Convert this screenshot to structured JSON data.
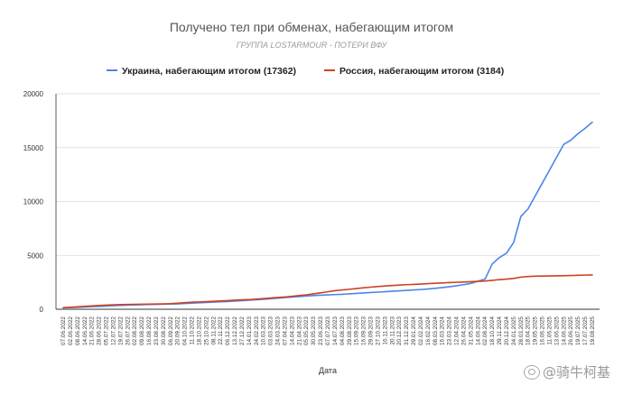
{
  "chart_data": {
    "type": "line",
    "title": "Получено тел при обменах, набегающим итогом",
    "subtitle": "ГРУППА LOSTARMOUR - ПОТЕРИ ВФУ",
    "xlabel": "Дата",
    "ylabel": "",
    "ylim": [
      0,
      20000
    ],
    "yticks": [
      0,
      5000,
      10000,
      15000,
      20000
    ],
    "grid": "horizontal",
    "legend_position": "top",
    "categories": [
      "07.06.2022",
      "02.06.2022",
      "08.06.2022",
      "14.06.2022",
      "21.06.2022",
      "28.06.2022",
      "05.07.2022",
      "12.07.2022",
      "19.07.2022",
      "26.07.2022",
      "02.08.2022",
      "09.08.2022",
      "16.08.2022",
      "23.08.2022",
      "30.08.2022",
      "06.09.2022",
      "20.09.2022",
      "04.10.2022",
      "11.10.2022",
      "18.10.2022",
      "25.10.2022",
      "08.11.2022",
      "22.11.2022",
      "06.12.2022",
      "13.12.2022",
      "27.12.2022",
      "14.01.2023",
      "24.02.2023",
      "10.03.2023",
      "03.03.2023",
      "24.03.2023",
      "07.04.2023",
      "14.04.2023",
      "21.04.2023",
      "05.05.2023",
      "30.05.2023",
      "23.06.2023",
      "07.07.2023",
      "14.07.2023",
      "04.08.2023",
      "29.08.2023",
      "15.09.2023",
      "16.09.2023",
      "29.09.2023",
      "27.10.2023",
      "16.11.2023",
      "20.11.2023",
      "20.12.2023",
      "31.12.2023",
      "29.01.2024",
      "02.02.2024",
      "16.02.2024",
      "08.03.2024",
      "16.03.2024",
      "23.03.2024",
      "12.04.2024",
      "26.04.2024",
      "31.05.2024",
      "14.06.2024",
      "02.08.2024",
      "18.10.2024",
      "29.11.2024",
      "20.12.2024",
      "24.01.2025",
      "28.03.2025",
      "18.04.2025",
      "19.05.2025",
      "16.06.2025",
      "11.06.2025",
      "13.06.2025",
      "14.06.2025",
      "26.06.2025",
      "19.07.2025",
      "17.07.2025",
      "19.08.2025"
    ],
    "series": [
      {
        "name": "Украина, набегающим итогом (17362)",
        "color": "#4a86e8",
        "values": [
          144,
          160,
          185,
          210,
          240,
          270,
          300,
          330,
          355,
          380,
          400,
          420,
          440,
          455,
          470,
          485,
          500,
          540,
          570,
          600,
          630,
          660,
          690,
          720,
          760,
          800,
          840,
          880,
          930,
          980,
          1030,
          1080,
          1130,
          1180,
          1230,
          1270,
          1300,
          1330,
          1360,
          1390,
          1430,
          1470,
          1510,
          1550,
          1590,
          1630,
          1670,
          1710,
          1750,
          1790,
          1830,
          1880,
          1940,
          2010,
          2090,
          2180,
          2280,
          2400,
          2600,
          2800,
          4200,
          4800,
          5200,
          6200,
          8600,
          9300,
          10500,
          11700,
          12900,
          14100,
          15300,
          15700,
          16300,
          16800,
          17362
        ]
      },
      {
        "name": "Россия, набегающим итогом (3184)",
        "color": "#cc4125",
        "values": [
          144,
          180,
          230,
          270,
          310,
          350,
          380,
          410,
          430,
          450,
          460,
          470,
          480,
          490,
          500,
          520,
          560,
          610,
          650,
          680,
          710,
          740,
          770,
          800,
          840,
          870,
          900,
          940,
          990,
          1040,
          1090,
          1140,
          1200,
          1270,
          1340,
          1430,
          1520,
          1620,
          1720,
          1790,
          1850,
          1920,
          1990,
          2050,
          2110,
          2160,
          2200,
          2240,
          2280,
          2310,
          2340,
          2380,
          2410,
          2440,
          2470,
          2500,
          2530,
          2560,
          2590,
          2620,
          2680,
          2750,
          2800,
          2860,
          2980,
          3040,
          3070,
          3080,
          3090,
          3100,
          3110,
          3130,
          3150,
          3170,
          3184
        ]
      }
    ]
  },
  "watermark": {
    "text": "@骑牛柯基",
    "icon": "weibo-icon"
  }
}
